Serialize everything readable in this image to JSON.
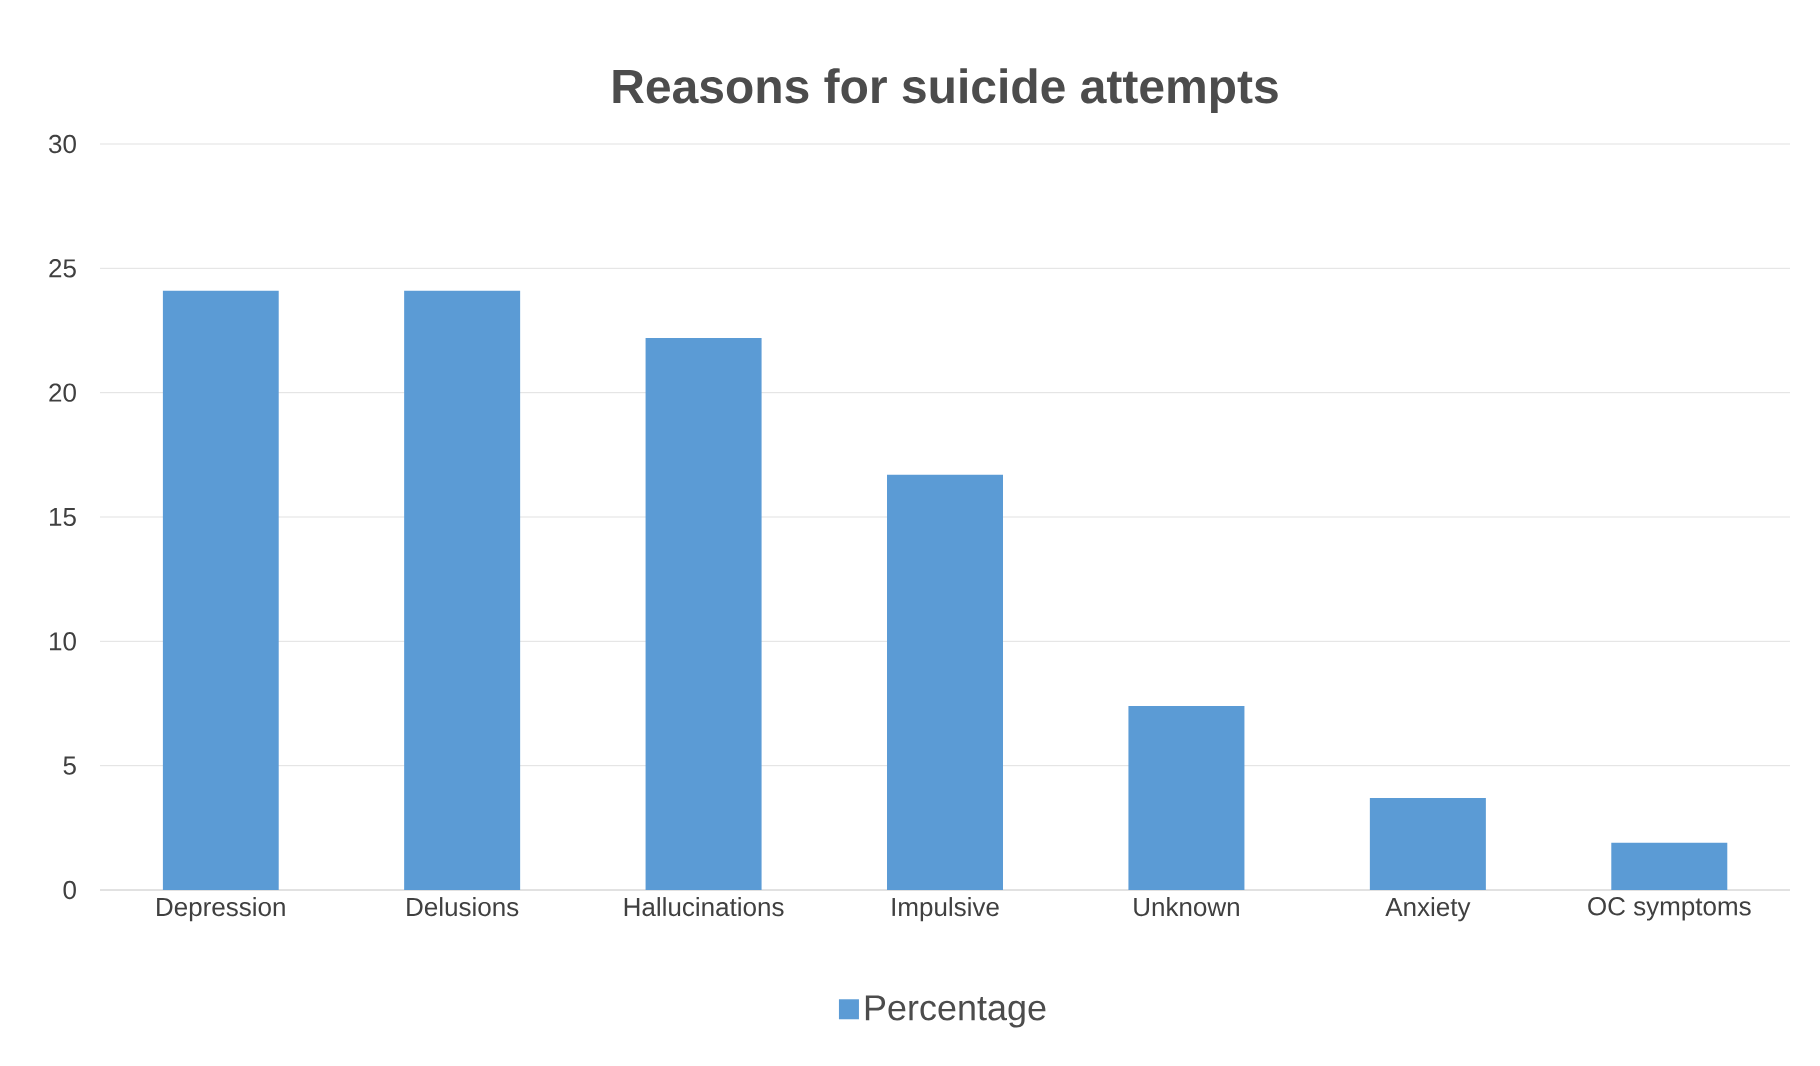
{
  "chart_data": {
    "type": "bar",
    "title": "Reasons for suicide attempts",
    "categories": [
      "Depression",
      "Delusions",
      "Hallucinations",
      "Impulsive",
      "Unknown",
      "Anxiety",
      "OC symptoms"
    ],
    "series": [
      {
        "name": "Percentage",
        "color": "#5b9bd5",
        "values": [
          24.1,
          24.1,
          22.2,
          16.7,
          7.4,
          3.7,
          1.9
        ]
      }
    ],
    "ylim": [
      0,
      30
    ],
    "yticks": [
      0,
      5,
      10,
      15,
      20,
      25,
      30
    ],
    "grid": "y",
    "legend": "bottom"
  }
}
